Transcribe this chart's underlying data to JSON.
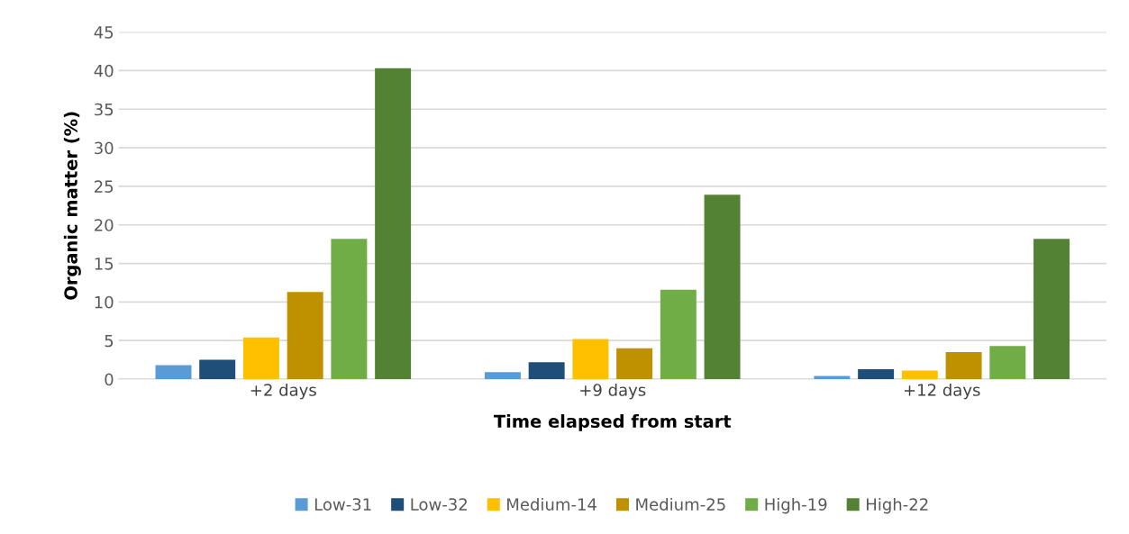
{
  "chart_data": {
    "type": "bar",
    "xlabel": "Time elapsed from start",
    "ylabel": "Organic matter (%)",
    "categories": [
      "+2 days",
      "+9 days",
      "+12 days"
    ],
    "series": [
      {
        "name": "Low-31",
        "color": "#5b9bd5",
        "values": [
          1.8,
          0.9,
          0.4
        ]
      },
      {
        "name": "Low-32",
        "color": "#1f4e79",
        "values": [
          2.5,
          2.2,
          1.3
        ]
      },
      {
        "name": "Medium-14",
        "color": "#ffc000",
        "values": [
          5.4,
          5.2,
          1.1
        ]
      },
      {
        "name": "Medium-25",
        "color": "#bf9000",
        "values": [
          11.3,
          4.0,
          3.5
        ]
      },
      {
        "name": "High-19",
        "color": "#70ad47",
        "values": [
          18.2,
          11.6,
          4.3
        ]
      },
      {
        "name": "High-22",
        "color": "#548235",
        "values": [
          40.3,
          23.9,
          18.2
        ]
      }
    ],
    "ylim": [
      0,
      45
    ],
    "yticks": [
      0,
      5,
      10,
      15,
      20,
      25,
      30,
      35,
      40,
      45
    ],
    "grid": "y",
    "legend": "bottom"
  }
}
